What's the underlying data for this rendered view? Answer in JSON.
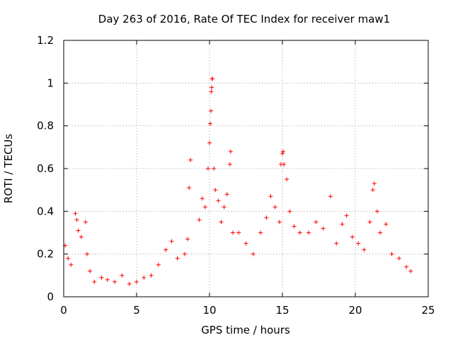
{
  "chart_data": {
    "type": "scatter",
    "title": "Day 263 of 2016, Rate Of TEC Index for receiver maw1",
    "xlabel": "GPS time / hours",
    "ylabel": "ROTI / TECUs",
    "xlim": [
      0,
      25
    ],
    "ylim": [
      0,
      1.2
    ],
    "xticks": [
      "0",
      "5",
      "10",
      "15",
      "20",
      "25"
    ],
    "xtick_values": [
      0,
      5,
      10,
      15,
      20,
      25
    ],
    "yticks": [
      "0",
      "0.2",
      "0.4",
      "0.6",
      "0.8",
      "1",
      "1.2"
    ],
    "ytick_values": [
      0,
      0.2,
      0.4,
      0.6,
      0.8,
      1.0,
      1.2
    ],
    "grid": true,
    "marker": "+",
    "marker_color": "#ff0000",
    "series": [
      {
        "name": "ROTI",
        "points": [
          [
            0.1,
            0.24
          ],
          [
            0.3,
            0.18
          ],
          [
            0.5,
            0.15
          ],
          [
            0.8,
            0.39
          ],
          [
            0.9,
            0.36
          ],
          [
            1.0,
            0.31
          ],
          [
            1.2,
            0.28
          ],
          [
            1.5,
            0.35
          ],
          [
            1.6,
            0.2
          ],
          [
            1.8,
            0.12
          ],
          [
            2.1,
            0.07
          ],
          [
            2.6,
            0.09
          ],
          [
            3.0,
            0.08
          ],
          [
            3.5,
            0.07
          ],
          [
            4.0,
            0.1
          ],
          [
            4.5,
            0.06
          ],
          [
            5.0,
            0.07
          ],
          [
            5.5,
            0.09
          ],
          [
            6.0,
            0.1
          ],
          [
            6.5,
            0.15
          ],
          [
            7.0,
            0.22
          ],
          [
            7.4,
            0.26
          ],
          [
            7.8,
            0.18
          ],
          [
            8.3,
            0.2
          ],
          [
            8.5,
            0.27
          ],
          [
            8.6,
            0.51
          ],
          [
            8.7,
            0.64
          ],
          [
            9.3,
            0.36
          ],
          [
            9.5,
            0.46
          ],
          [
            9.7,
            0.42
          ],
          [
            9.9,
            0.6
          ],
          [
            10.0,
            0.72
          ],
          [
            10.05,
            0.81
          ],
          [
            10.1,
            0.87
          ],
          [
            10.12,
            0.96
          ],
          [
            10.15,
            0.98
          ],
          [
            10.18,
            1.02
          ],
          [
            10.2,
            1.02
          ],
          [
            10.3,
            0.6
          ],
          [
            10.4,
            0.5
          ],
          [
            10.6,
            0.45
          ],
          [
            10.8,
            0.35
          ],
          [
            11.0,
            0.42
          ],
          [
            11.2,
            0.48
          ],
          [
            11.4,
            0.62
          ],
          [
            11.45,
            0.68
          ],
          [
            11.6,
            0.3
          ],
          [
            12.0,
            0.3
          ],
          [
            12.5,
            0.25
          ],
          [
            13.0,
            0.2
          ],
          [
            13.5,
            0.3
          ],
          [
            13.9,
            0.37
          ],
          [
            14.2,
            0.47
          ],
          [
            14.5,
            0.42
          ],
          [
            14.8,
            0.35
          ],
          [
            14.9,
            0.62
          ],
          [
            15.0,
            0.67
          ],
          [
            15.05,
            0.68
          ],
          [
            15.1,
            0.62
          ],
          [
            15.3,
            0.55
          ],
          [
            15.5,
            0.4
          ],
          [
            15.8,
            0.33
          ],
          [
            16.2,
            0.3
          ],
          [
            16.8,
            0.3
          ],
          [
            17.3,
            0.35
          ],
          [
            17.8,
            0.32
          ],
          [
            18.3,
            0.47
          ],
          [
            18.7,
            0.25
          ],
          [
            19.1,
            0.34
          ],
          [
            19.4,
            0.38
          ],
          [
            19.8,
            0.28
          ],
          [
            20.2,
            0.25
          ],
          [
            20.6,
            0.22
          ],
          [
            21.0,
            0.35
          ],
          [
            21.2,
            0.5
          ],
          [
            21.3,
            0.53
          ],
          [
            21.5,
            0.4
          ],
          [
            21.7,
            0.3
          ],
          [
            22.1,
            0.34
          ],
          [
            22.5,
            0.2
          ],
          [
            23.0,
            0.18
          ],
          [
            23.5,
            0.14
          ],
          [
            23.8,
            0.12
          ]
        ]
      }
    ]
  }
}
